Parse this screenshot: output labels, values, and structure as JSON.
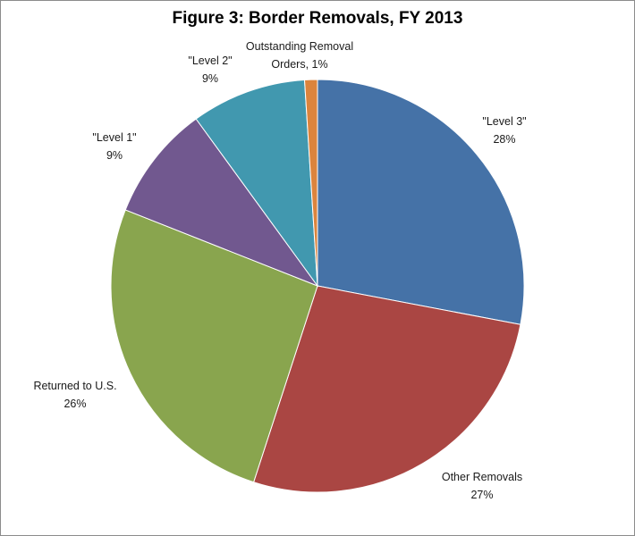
{
  "chart_data": {
    "type": "pie",
    "title": "Figure 3: Border Removals, FY 2013",
    "start": "12 o'clock",
    "direction": "clockwise",
    "legend": "none (data labels on slices)",
    "slices": [
      {
        "label": "\"Level 3\"",
        "value": 28,
        "value_label": "28%",
        "color": "#4572A7"
      },
      {
        "label": "Other Removals",
        "value": 27,
        "value_label": "27%",
        "color": "#AA4643"
      },
      {
        "label": "Returned to U.S.",
        "value": 26,
        "value_label": "26%",
        "color": "#89A54E"
      },
      {
        "label": "\"Level 1\"",
        "value": 9,
        "value_label": "9%",
        "color": "#71588F"
      },
      {
        "label": "\"Level 2\"",
        "value": 9,
        "value_label": "9%",
        "color": "#4198AF"
      },
      {
        "label": "Outstanding Removal Orders, 1%",
        "value": 1,
        "value_label": "",
        "color": "#DB843D"
      }
    ]
  }
}
